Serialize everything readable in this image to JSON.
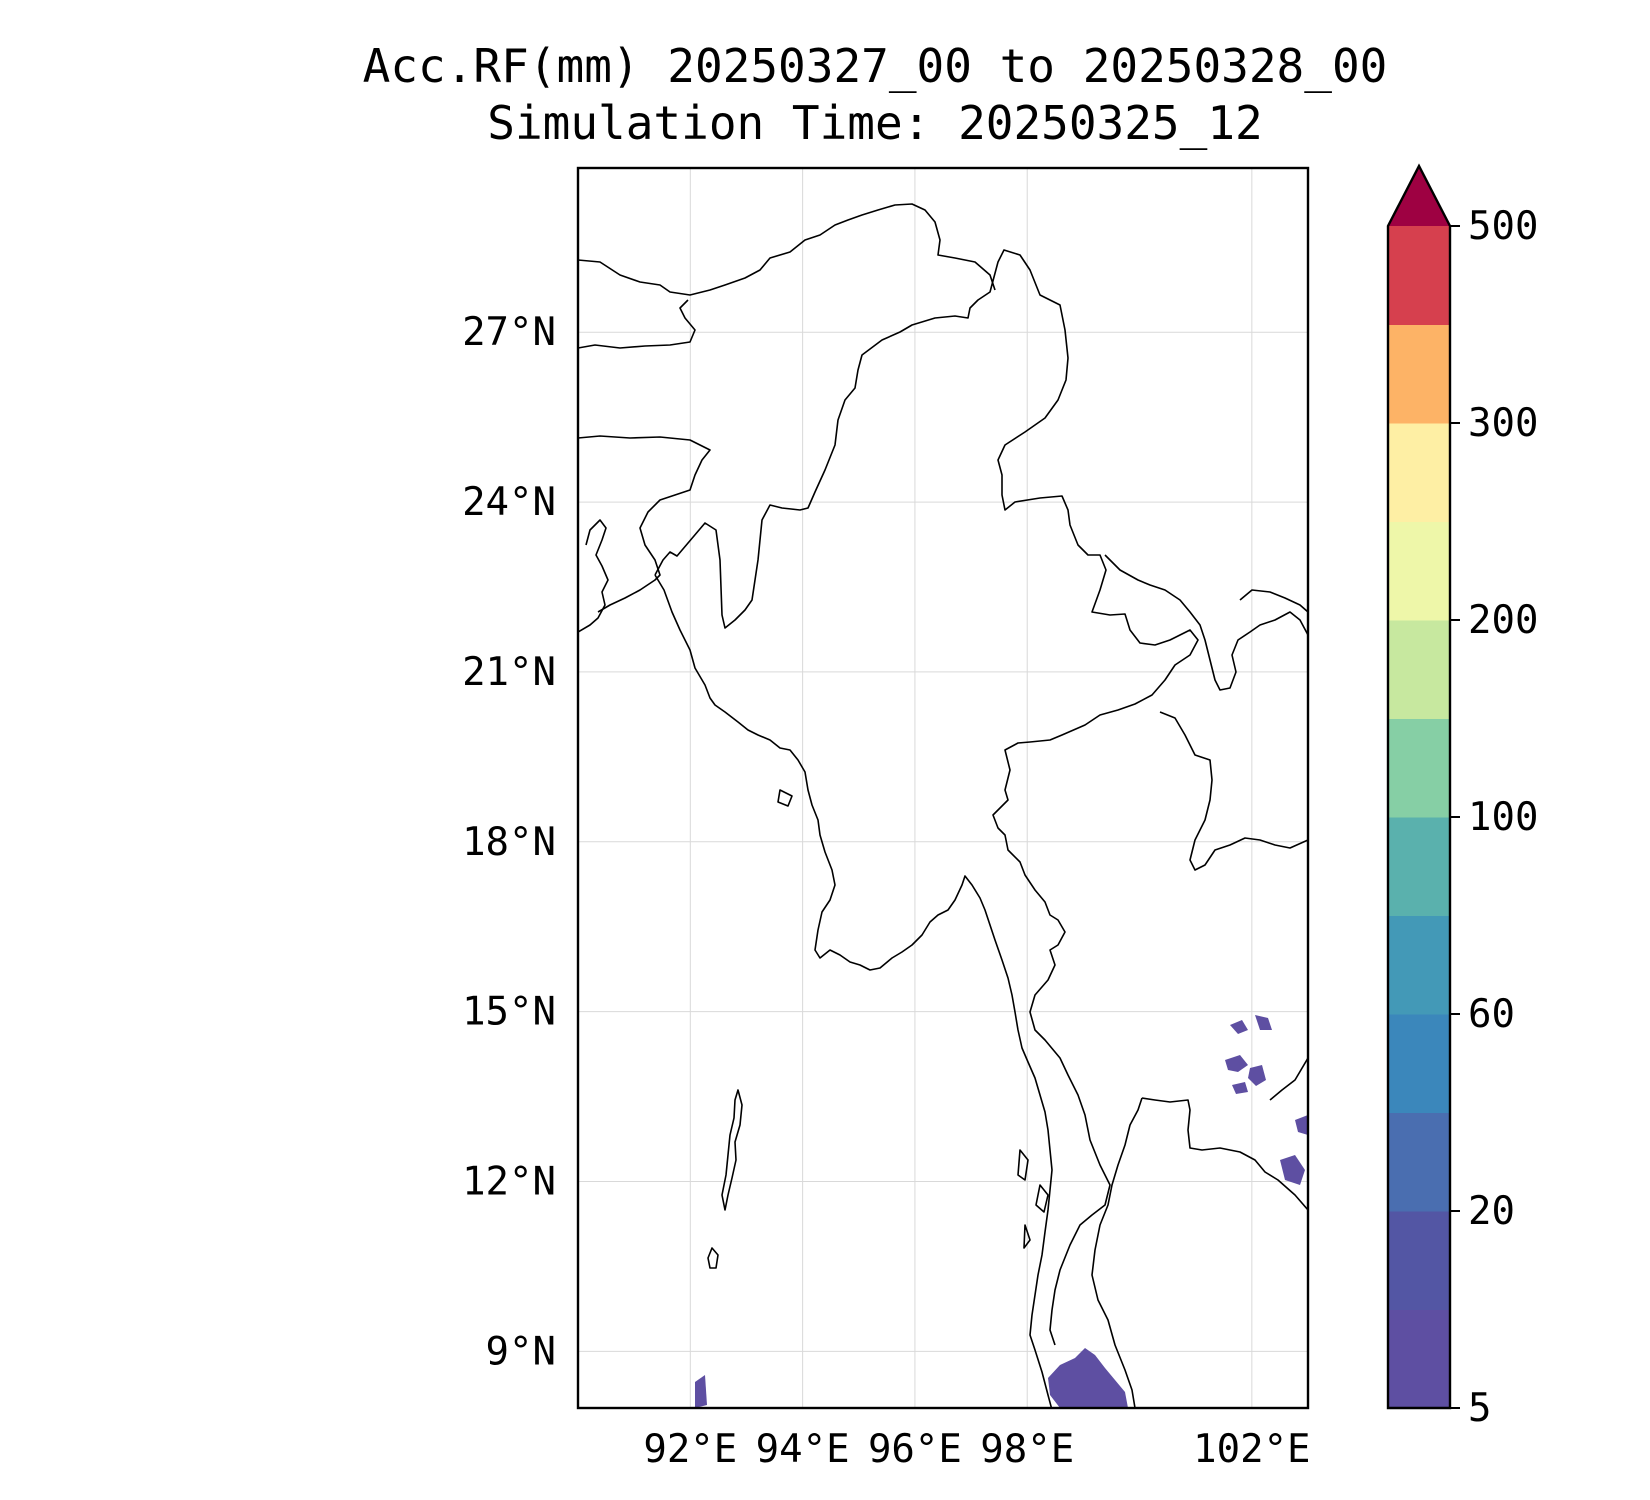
{
  "title": {
    "line1": "Acc.RF(mm) 20250327_00 to 20250328_00",
    "line2": "Simulation Time: 20250325_12"
  },
  "map": {
    "lon_range": [
      90.0,
      103.0
    ],
    "lat_range": [
      8.0,
      29.9
    ],
    "lon_ticks": [
      {
        "value": 92,
        "label": "92°E"
      },
      {
        "value": 94,
        "label": "94°E"
      },
      {
        "value": 96,
        "label": "96°E"
      },
      {
        "value": 98,
        "label": "98°E"
      },
      {
        "value": 102,
        "label": "102°E"
      }
    ],
    "lat_ticks": [
      {
        "value": 27,
        "label": "27°N"
      },
      {
        "value": 24,
        "label": "24°N"
      },
      {
        "value": 21,
        "label": "21°N"
      },
      {
        "value": 18,
        "label": "18°N"
      },
      {
        "value": 15,
        "label": "15°N"
      },
      {
        "value": 12,
        "label": "12°N"
      },
      {
        "value": 9,
        "label": "9°N"
      }
    ],
    "grid": true,
    "rain_color": "#5e4fa2"
  },
  "colorbar": {
    "levels": [
      5,
      10,
      20,
      40,
      60,
      80,
      100,
      150,
      200,
      250,
      300,
      400,
      500
    ],
    "colors": [
      "#5e4fa2",
      "#5356a4",
      "#4a6eb0",
      "#3b87bb",
      "#4399b7",
      "#5ab1ad",
      "#86cfa5",
      "#c7e89f",
      "#eef7a9",
      "#feefa4",
      "#fdb366",
      "#d6404e"
    ],
    "extend_color": "#9e0142",
    "tick_labels": [
      {
        "value": 5,
        "label": "5"
      },
      {
        "value": 20,
        "label": "20"
      },
      {
        "value": 60,
        "label": "60"
      },
      {
        "value": 100,
        "label": "100"
      },
      {
        "value": 200,
        "label": "200"
      },
      {
        "value": 300,
        "label": "300"
      },
      {
        "value": 500,
        "label": "500"
      }
    ]
  }
}
